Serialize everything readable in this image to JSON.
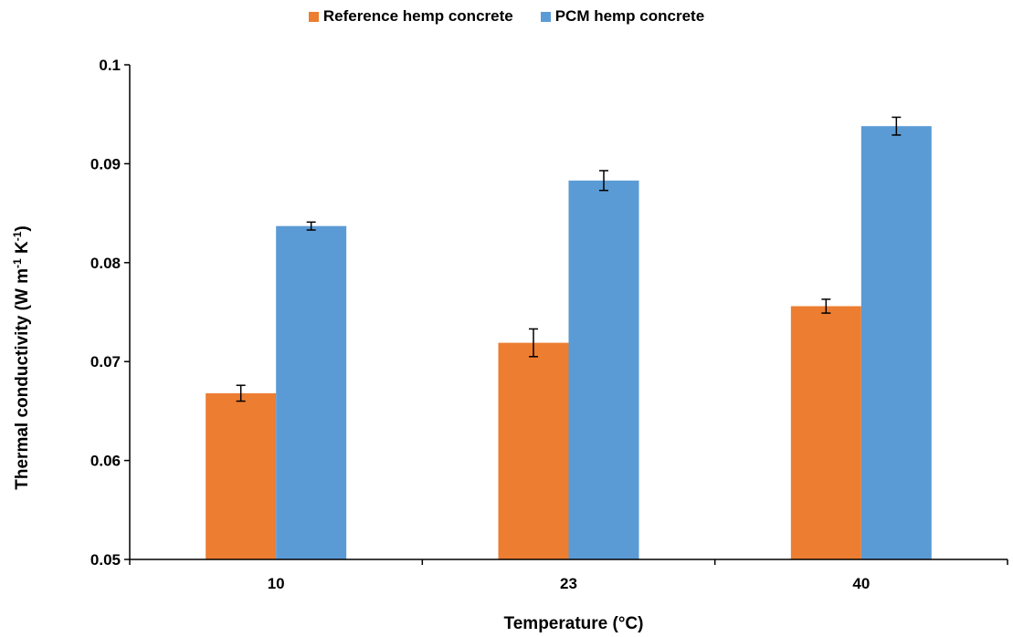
{
  "chart_data": {
    "type": "bar",
    "title": "",
    "xlabel": "Temperature (°C)",
    "ylabel_main": "Thermal conductivity (W m",
    "ylabel_sup1": "-1",
    "ylabel_mid": " K",
    "ylabel_sup2": "-1",
    "ylabel_end": ")",
    "categories": [
      "10",
      "23",
      "40"
    ],
    "ylim": [
      0.05,
      0.1
    ],
    "yticks": [
      "0.05",
      "0.06",
      "0.07",
      "0.08",
      "0.09",
      "0.1"
    ],
    "ytick_values": [
      0.05,
      0.06,
      0.07,
      0.08,
      0.09,
      0.1
    ],
    "grid": false,
    "legend_position": "top-center",
    "series": [
      {
        "name": "Reference hemp concrete",
        "color": "#ED7D31",
        "values": [
          0.0668,
          0.0719,
          0.0756
        ],
        "errors": [
          0.0008,
          0.0014,
          0.0007
        ]
      },
      {
        "name": "PCM hemp concrete",
        "color": "#5B9BD5",
        "values": [
          0.0837,
          0.0883,
          0.0938
        ],
        "errors": [
          0.0004,
          0.001,
          0.0009
        ]
      }
    ]
  }
}
